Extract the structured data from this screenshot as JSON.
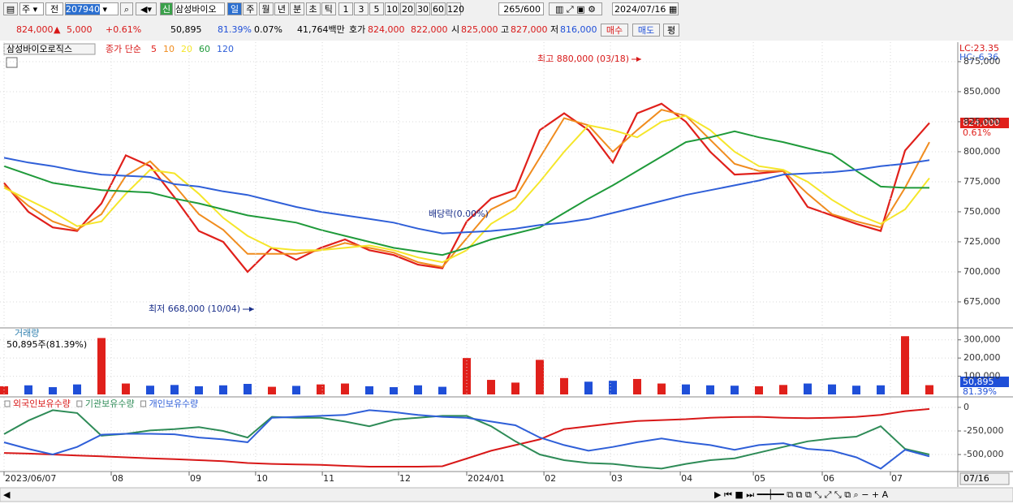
{
  "toolbar": {
    "row1": {
      "period_left": "주",
      "period_right": "전",
      "code": "207940",
      "name": "삼성바이오",
      "units": [
        "일",
        "주",
        "월",
        "년",
        "분",
        "초",
        "틱"
      ],
      "intervals": [
        "1",
        "3",
        "5",
        "10",
        "20",
        "30",
        "60",
        "120"
      ],
      "count": "265",
      "max": "/600",
      "date": "2024/07/16"
    },
    "row2": {
      "price": "824,000",
      "arrow": "▲",
      "change": "5,000",
      "change_pct": "+0.61%",
      "volume": "50,895",
      "volume_pct": "81.39%",
      "turnover": "0.07%",
      "amount": "41,764백만",
      "quote_label": "호가",
      "ask": "824,000",
      "bid": "822,000",
      "open_label": "시",
      "open": "825,000",
      "high_label": "고",
      "high": "827,000",
      "low_label": "저",
      "low": "816,000",
      "buy": "매수",
      "sell": "매도",
      "avg": "평"
    }
  },
  "chart_data": [
    {
      "type": "line",
      "title": "삼성바이오로직스",
      "legend_title": "종가 단순",
      "xlim": [
        0,
        38
      ],
      "ylim": [
        654700,
        891200
      ],
      "yticks": [
        {
          "value": 675000,
          "label": "675,000"
        },
        {
          "value": 700000,
          "label": "700,000"
        },
        {
          "value": 725000,
          "label": "725,000"
        },
        {
          "value": 750000,
          "label": "750,000"
        },
        {
          "value": 775000,
          "label": "775,000"
        },
        {
          "value": 800000,
          "label": "800,000"
        },
        {
          "value": 825000,
          "label": "825,000"
        },
        {
          "value": 850000,
          "label": "850,000"
        },
        {
          "value": 875000,
          "label": "875,000"
        }
      ],
      "grid": true,
      "lc": "LC:23.35",
      "hc": "HC:-6.36",
      "last_label": "824,000",
      "last_change": "0.61%",
      "annotations": [
        {
          "text": "최고 880,000 (03/18)"
        },
        {
          "text": "최저 668,000 (10/04)"
        },
        {
          "text": "배당락(0.00%)"
        }
      ],
      "series": [
        {
          "name": "5",
          "color": "#e0201b",
          "values": [
            774000,
            750000,
            737000,
            734000,
            757000,
            797000,
            788000,
            762000,
            734000,
            725000,
            700000,
            720000,
            710000,
            720000,
            727000,
            718000,
            714000,
            706000,
            703000,
            742000,
            761000,
            768000,
            818000,
            832000,
            818000,
            791000,
            832000,
            840000,
            825000,
            800000,
            781000,
            782000,
            784000,
            754000,
            747000,
            740000,
            734000,
            801000,
            824000
          ]
        },
        {
          "name": "10",
          "color": "#f08c1e",
          "values": [
            772000,
            755000,
            742000,
            735000,
            748000,
            780000,
            792000,
            772000,
            748000,
            735000,
            715000,
            715000,
            715000,
            718000,
            724000,
            720000,
            716000,
            708000,
            704000,
            728000,
            752000,
            762000,
            795000,
            828000,
            822000,
            800000,
            818000,
            835000,
            830000,
            810000,
            790000,
            784000,
            784000,
            765000,
            748000,
            742000,
            737000,
            770000,
            808000
          ]
        },
        {
          "name": "20",
          "color": "#f5e62a",
          "values": [
            770000,
            760000,
            750000,
            738000,
            742000,
            765000,
            785000,
            782000,
            765000,
            745000,
            730000,
            720000,
            718000,
            718000,
            720000,
            722000,
            718000,
            712000,
            708000,
            718000,
            740000,
            752000,
            775000,
            800000,
            822000,
            818000,
            812000,
            825000,
            830000,
            818000,
            800000,
            788000,
            785000,
            775000,
            760000,
            748000,
            740000,
            752000,
            778000
          ]
        },
        {
          "name": "60",
          "color": "#1f9a3a",
          "values": [
            788000,
            781000,
            774000,
            771000,
            768000,
            767000,
            766000,
            761000,
            757000,
            752000,
            747000,
            744000,
            741000,
            735000,
            730000,
            725000,
            720000,
            717000,
            714000,
            720000,
            727000,
            732000,
            737000,
            749000,
            761000,
            772000,
            784000,
            796000,
            808000,
            812000,
            817000,
            812000,
            808000,
            803000,
            798000,
            784000,
            771000,
            770000,
            770000
          ]
        },
        {
          "name": "120",
          "color": "#2f5fd8",
          "values": [
            795000,
            791000,
            788000,
            784000,
            781000,
            780000,
            779000,
            773000,
            771000,
            767000,
            764000,
            759000,
            754000,
            750000,
            747000,
            744000,
            741000,
            736000,
            732000,
            733000,
            734000,
            736000,
            739000,
            741000,
            744000,
            749000,
            754000,
            759000,
            764000,
            768000,
            772000,
            776000,
            781000,
            782000,
            783000,
            785000,
            788000,
            790000,
            793000
          ]
        }
      ]
    },
    {
      "type": "bar",
      "title": "거래량",
      "subtitle": "50,895주(81.39%)",
      "xlim": [
        0,
        38
      ],
      "ylim": [
        0,
        330000
      ],
      "yticks": [
        {
          "value": 100000,
          "label": "100,000"
        },
        {
          "value": 200000,
          "label": "200,000"
        },
        {
          "value": 300000,
          "label": "300,000"
        }
      ],
      "grid": true,
      "up_color": "#e0201b",
      "down_color": "#1f4fd8",
      "last_label": "50,895",
      "last_pct": "81.39%",
      "values": [
        45000,
        50000,
        40000,
        55000,
        310000,
        60000,
        48000,
        52000,
        45000,
        50000,
        58000,
        42000,
        47000,
        55000,
        60000,
        45000,
        40000,
        50000,
        42000,
        200000,
        80000,
        65000,
        190000,
        90000,
        70000,
        75000,
        85000,
        60000,
        55000,
        50000,
        48000,
        45000,
        52000,
        60000,
        55000,
        48000,
        50000,
        320000,
        50895
      ]
    },
    {
      "type": "line",
      "xlim": [
        0,
        38
      ],
      "ylim": [
        -672000,
        103000
      ],
      "yticks": [
        0,
        {
          "value": -250000,
          "label": "-250,000"
        },
        {
          "value": -500000,
          "label": "-500,000"
        }
      ],
      "grid": true,
      "xticks": [
        {
          "value": 0,
          "label": "2023/06/07"
        },
        {
          "value": 4.4,
          "label": "08"
        },
        {
          "value": 7.6,
          "label": "09"
        },
        {
          "value": 10.33,
          "label": "10"
        },
        {
          "value": 13.07,
          "label": "11"
        },
        {
          "value": 16.2,
          "label": "12"
        },
        {
          "value": 19,
          "label": "2024/01"
        },
        {
          "value": 22.17,
          "label": "02"
        },
        {
          "value": 24.9,
          "label": "03"
        },
        {
          "value": 27.77,
          "label": "04"
        },
        {
          "value": 30.77,
          "label": "05"
        },
        {
          "value": 33.6,
          "label": "06"
        },
        {
          "value": 36.4,
          "label": "07"
        }
      ],
      "x_end_label": "07/16",
      "series": [
        {
          "name": "외국인보유수량",
          "color": "#d81818",
          "values": [
            -483000,
            -490000,
            -500000,
            -510000,
            -520000,
            -530000,
            -540000,
            -550000,
            -560000,
            -570000,
            -590000,
            -600000,
            -605000,
            -610000,
            -620000,
            -629000,
            -629000,
            -629000,
            -625000,
            -543000,
            -460000,
            -400000,
            -340000,
            -230000,
            -200000,
            -170000,
            -145000,
            -135000,
            -125000,
            -110000,
            -103000,
            -100000,
            -110000,
            -115000,
            -110000,
            -100000,
            -80000,
            -40000,
            -17000
          ]
        },
        {
          "name": "기관보유수량",
          "color": "#2e8b57",
          "values": [
            -284000,
            -140000,
            -30000,
            -60000,
            -300000,
            -280000,
            -245000,
            -230000,
            -210000,
            -250000,
            -320000,
            -100000,
            -110000,
            -110000,
            -150000,
            -200000,
            -130000,
            -110000,
            -90000,
            -90000,
            -200000,
            -360000,
            -500000,
            -560000,
            -590000,
            -600000,
            -630000,
            -650000,
            -600000,
            -560000,
            -540000,
            -480000,
            -420000,
            -360000,
            -330000,
            -310000,
            -200000,
            -440000,
            -500000
          ]
        },
        {
          "name": "개인보유수량",
          "color": "#2f5fd8",
          "values": [
            -371000,
            -440000,
            -500000,
            -420000,
            -290000,
            -280000,
            -280000,
            -285000,
            -320000,
            -340000,
            -370000,
            -110000,
            -100000,
            -90000,
            -80000,
            -30000,
            -50000,
            -80000,
            -100000,
            -110000,
            -150000,
            -190000,
            -320000,
            -400000,
            -460000,
            -420000,
            -370000,
            -330000,
            -370000,
            -400000,
            -450000,
            -400000,
            -380000,
            -440000,
            -460000,
            -530000,
            -650000,
            -450000,
            -520000
          ]
        }
      ]
    }
  ]
}
